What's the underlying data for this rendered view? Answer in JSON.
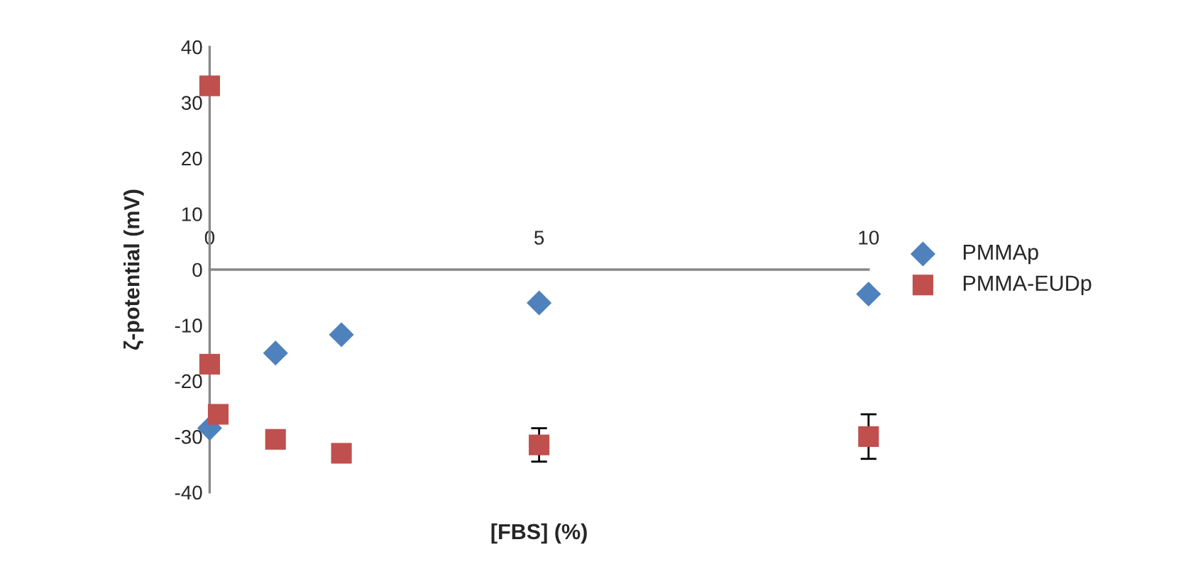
{
  "chart_data": {
    "type": "scatter",
    "xlabel": "[FBS] (%)",
    "ylabel": "ζ-potential (mV)",
    "xlim": [
      0,
      10
    ],
    "xticks": [
      0,
      5,
      10
    ],
    "ylim": [
      -40,
      40
    ],
    "yticks": [
      -40,
      -30,
      -20,
      -10,
      0,
      10,
      20,
      30,
      40
    ],
    "grid": false,
    "legend": "right",
    "series": [
      {
        "name": "PMMAp",
        "color": "#4f81bd",
        "marker": "diamond",
        "x": [
          0,
          1,
          2,
          5,
          10
        ],
        "values": [
          -28.5,
          -15,
          -11.7,
          -6,
          -4.4
        ]
      },
      {
        "name": "PMMA-EUDp",
        "color": "#c0504d",
        "marker": "square",
        "x": [
          0,
          0,
          0.13,
          1,
          2,
          5,
          10
        ],
        "values": [
          33,
          -17,
          -26,
          -30.5,
          -33,
          -31.5,
          -30
        ],
        "errors": [
          null,
          null,
          null,
          null,
          null,
          3,
          4
        ]
      }
    ]
  }
}
